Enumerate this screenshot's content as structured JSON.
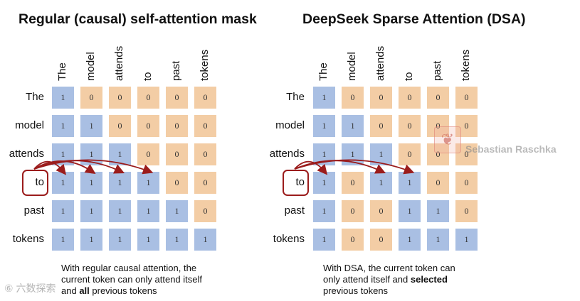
{
  "tokens": [
    "The",
    "model",
    "attends",
    "to",
    "past",
    "tokens"
  ],
  "left": {
    "title": "Regular (causal) self-attention mask",
    "matrix": [
      [
        1,
        0,
        0,
        0,
        0,
        0
      ],
      [
        1,
        1,
        0,
        0,
        0,
        0
      ],
      [
        1,
        1,
        1,
        0,
        0,
        0
      ],
      [
        1,
        1,
        1,
        1,
        0,
        0
      ],
      [
        1,
        1,
        1,
        1,
        1,
        0
      ],
      [
        1,
        1,
        1,
        1,
        1,
        1
      ]
    ],
    "arrow_targets": [
      0,
      1,
      2,
      3
    ],
    "caption": {
      "line1": "With regular causal attention, the",
      "line2": "current token can only attend itself",
      "line3_pre": "and ",
      "line3_bold": "all",
      "line3_post": " previous tokens"
    }
  },
  "right": {
    "title": "DeepSeek Sparse Attention (DSA)",
    "matrix": [
      [
        1,
        0,
        0,
        0,
        0,
        0
      ],
      [
        1,
        1,
        0,
        0,
        0,
        0
      ],
      [
        1,
        1,
        1,
        0,
        0,
        0
      ],
      [
        1,
        0,
        1,
        1,
        0,
        0
      ],
      [
        1,
        0,
        0,
        1,
        1,
        0
      ],
      [
        1,
        0,
        0,
        1,
        1,
        1
      ]
    ],
    "arrow_targets": [
      0,
      2,
      3
    ],
    "caption": {
      "line1": "With DSA, the current token can",
      "line2_pre": "only attend itself and ",
      "line2_bold": "selected",
      "line3": "previous tokens"
    }
  },
  "highlight_row": 3,
  "colors": {
    "one": "#a9bfe3",
    "zero": "#f3cda5",
    "arrow": "#9b1c1c"
  },
  "watermark": {
    "logo_icon": "fern-logo-icon",
    "text": "Sebastian Raschka"
  },
  "corner_mark": "⑥ 六数探索"
}
